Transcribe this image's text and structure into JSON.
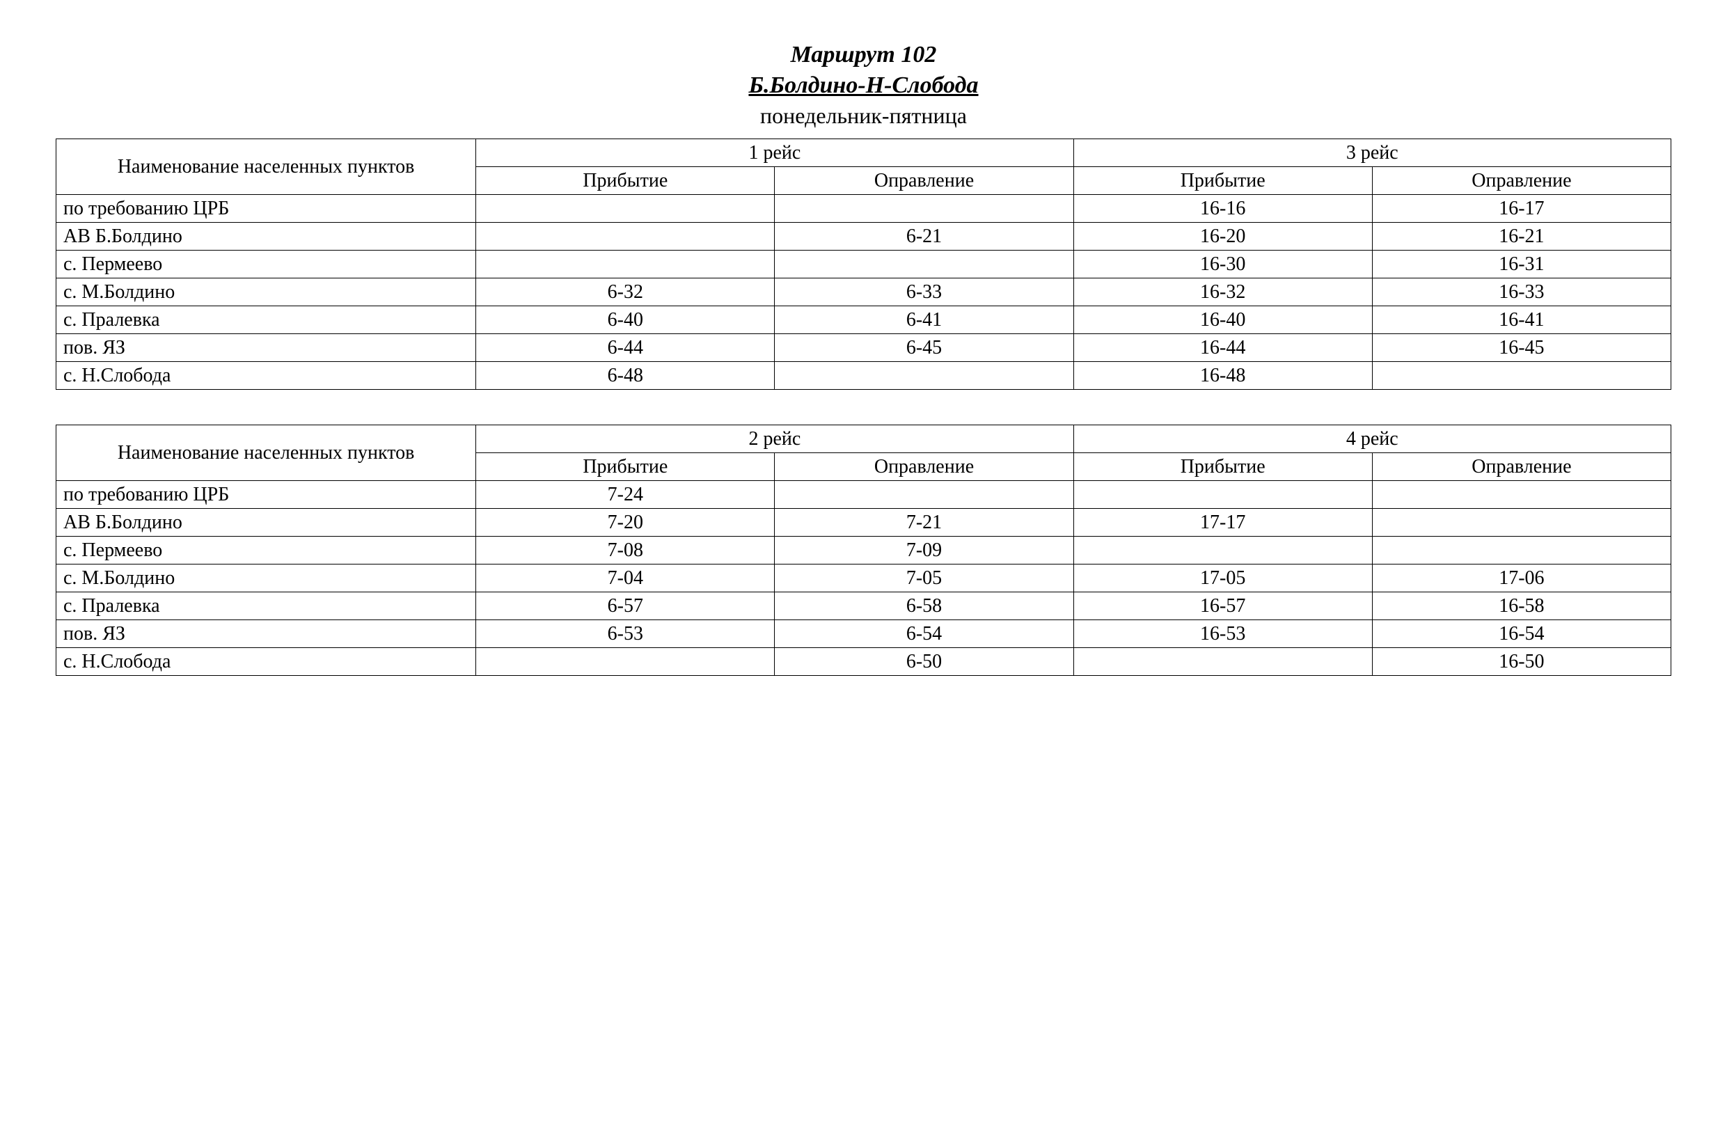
{
  "header": {
    "route_title": "Маршрут 102",
    "route_name": "Б.Болдино-Н-Слобода",
    "days": "понедельник-пятница"
  },
  "labels": {
    "stops_header": "Наименование населенных пунктов",
    "arrival": "Прибытие",
    "departure": "Оправление"
  },
  "table1": {
    "trip_a_label": "1 рейс",
    "trip_b_label": "3 рейс",
    "rows": [
      {
        "stop": "по требованию ЦРБ",
        "a_arr": "",
        "a_dep": "",
        "b_arr": "16-16",
        "b_dep": "16-17"
      },
      {
        "stop": "АВ Б.Болдино",
        "a_arr": "",
        "a_dep": "6-21",
        "b_arr": "16-20",
        "b_dep": "16-21"
      },
      {
        "stop": "с. Пермеево",
        "a_arr": "",
        "a_dep": "",
        "b_arr": "16-30",
        "b_dep": "16-31"
      },
      {
        "stop": "с. М.Болдино",
        "a_arr": "6-32",
        "a_dep": "6-33",
        "b_arr": "16-32",
        "b_dep": "16-33"
      },
      {
        "stop": "с. Пралевка",
        "a_arr": "6-40",
        "a_dep": "6-41",
        "b_arr": "16-40",
        "b_dep": "16-41"
      },
      {
        "stop": "пов. ЯЗ",
        "a_arr": "6-44",
        "a_dep": "6-45",
        "b_arr": "16-44",
        "b_dep": "16-45"
      },
      {
        "stop": "с. Н.Слобода",
        "a_arr": "6-48",
        "a_dep": "",
        "b_arr": "16-48",
        "b_dep": ""
      }
    ]
  },
  "table2": {
    "trip_a_label": "2 рейс",
    "trip_b_label": "4 рейс",
    "rows": [
      {
        "stop": "по требованию ЦРБ",
        "a_arr": "7-24",
        "a_dep": "",
        "b_arr": "",
        "b_dep": ""
      },
      {
        "stop": "АВ Б.Болдино",
        "a_arr": "7-20",
        "a_dep": "7-21",
        "b_arr": "17-17",
        "b_dep": ""
      },
      {
        "stop": "с. Пермеево",
        "a_arr": "7-08",
        "a_dep": "7-09",
        "b_arr": "",
        "b_dep": ""
      },
      {
        "stop": "с. М.Болдино",
        "a_arr": "7-04",
        "a_dep": "7-05",
        "b_arr": "17-05",
        "b_dep": "17-06"
      },
      {
        "stop": "с. Пралевка",
        "a_arr": "6-57",
        "a_dep": "6-58",
        "b_arr": "16-57",
        "b_dep": "16-58"
      },
      {
        "stop": "пов. ЯЗ",
        "a_arr": "6-53",
        "a_dep": "6-54",
        "b_arr": "16-53",
        "b_dep": "16-54"
      },
      {
        "stop": "с. Н.Слобода",
        "a_arr": "",
        "a_dep": "6-50",
        "b_arr": "",
        "b_dep": "16-50"
      }
    ]
  }
}
